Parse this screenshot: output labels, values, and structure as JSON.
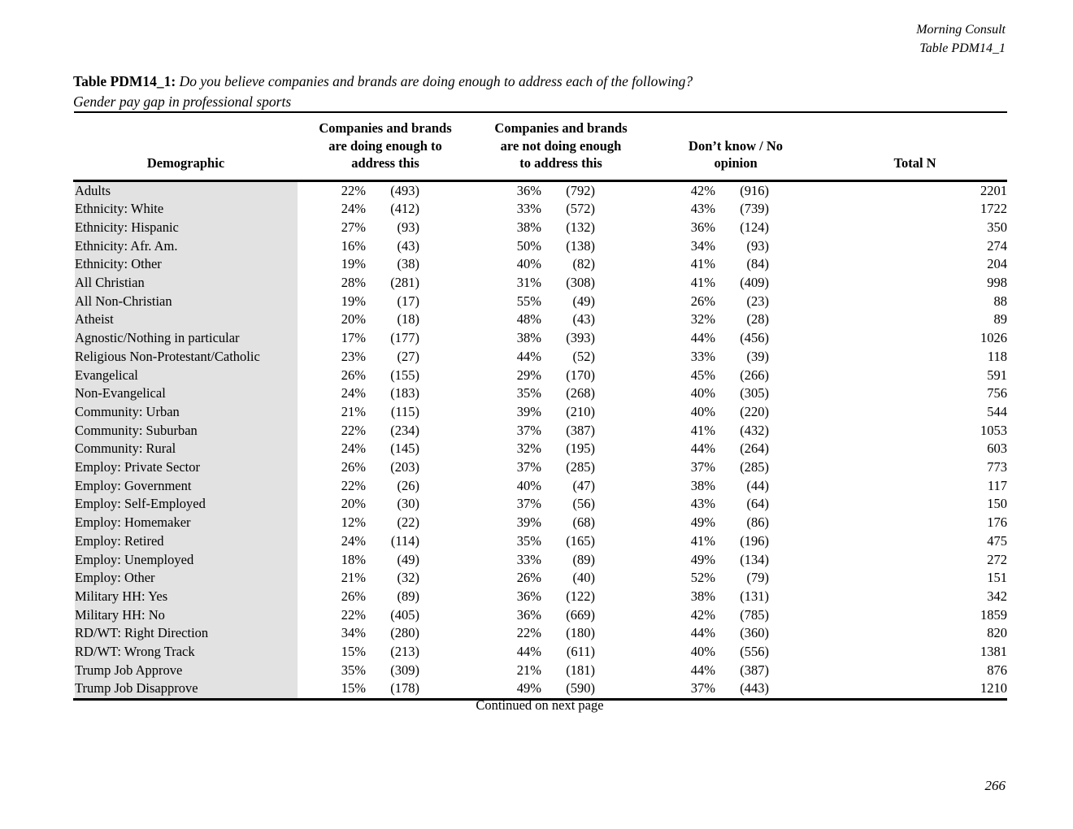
{
  "header": {
    "line1": "Morning Consult",
    "line2": "Table PDM14_1"
  },
  "title": {
    "label": "Table PDM14_1:",
    "question": "Do you believe companies and brands are doing enough to address each of the following?",
    "subtitle": "Gender pay gap in professional sports"
  },
  "table": {
    "headers": {
      "demographic": "Demographic",
      "col1": "Companies and brands\nare doing enough to\naddress this",
      "col2": "Companies and brands\nare not doing enough\nto address this",
      "col3": "Don’t know / No\nopinion",
      "total": "Total N"
    },
    "rows": [
      {
        "demographic": "Adults",
        "pct1": "22%",
        "n1": "(493)",
        "pct2": "36%",
        "n2": "(792)",
        "pct3": "42%",
        "n3": "(916)",
        "total": "2201"
      },
      {
        "demographic": "Ethnicity: White",
        "pct1": "24%",
        "n1": "(412)",
        "pct2": "33%",
        "n2": "(572)",
        "pct3": "43%",
        "n3": "(739)",
        "total": "1722"
      },
      {
        "demographic": "Ethnicity: Hispanic",
        "pct1": "27%",
        "n1": "(93)",
        "pct2": "38%",
        "n2": "(132)",
        "pct3": "36%",
        "n3": "(124)",
        "total": "350"
      },
      {
        "demographic": "Ethnicity: Afr. Am.",
        "pct1": "16%",
        "n1": "(43)",
        "pct2": "50%",
        "n2": "(138)",
        "pct3": "34%",
        "n3": "(93)",
        "total": "274"
      },
      {
        "demographic": "Ethnicity: Other",
        "pct1": "19%",
        "n1": "(38)",
        "pct2": "40%",
        "n2": "(82)",
        "pct3": "41%",
        "n3": "(84)",
        "total": "204"
      },
      {
        "demographic": "All Christian",
        "pct1": "28%",
        "n1": "(281)",
        "pct2": "31%",
        "n2": "(308)",
        "pct3": "41%",
        "n3": "(409)",
        "total": "998"
      },
      {
        "demographic": "All Non-Christian",
        "pct1": "19%",
        "n1": "(17)",
        "pct2": "55%",
        "n2": "(49)",
        "pct3": "26%",
        "n3": "(23)",
        "total": "88"
      },
      {
        "demographic": "Atheist",
        "pct1": "20%",
        "n1": "(18)",
        "pct2": "48%",
        "n2": "(43)",
        "pct3": "32%",
        "n3": "(28)",
        "total": "89"
      },
      {
        "demographic": "Agnostic/Nothing in particular",
        "pct1": "17%",
        "n1": "(177)",
        "pct2": "38%",
        "n2": "(393)",
        "pct3": "44%",
        "n3": "(456)",
        "total": "1026"
      },
      {
        "demographic": "Religious Non-Protestant/Catholic",
        "pct1": "23%",
        "n1": "(27)",
        "pct2": "44%",
        "n2": "(52)",
        "pct3": "33%",
        "n3": "(39)",
        "total": "118"
      },
      {
        "demographic": "Evangelical",
        "pct1": "26%",
        "n1": "(155)",
        "pct2": "29%",
        "n2": "(170)",
        "pct3": "45%",
        "n3": "(266)",
        "total": "591"
      },
      {
        "demographic": "Non-Evangelical",
        "pct1": "24%",
        "n1": "(183)",
        "pct2": "35%",
        "n2": "(268)",
        "pct3": "40%",
        "n3": "(305)",
        "total": "756"
      },
      {
        "demographic": "Community: Urban",
        "pct1": "21%",
        "n1": "(115)",
        "pct2": "39%",
        "n2": "(210)",
        "pct3": "40%",
        "n3": "(220)",
        "total": "544"
      },
      {
        "demographic": "Community: Suburban",
        "pct1": "22%",
        "n1": "(234)",
        "pct2": "37%",
        "n2": "(387)",
        "pct3": "41%",
        "n3": "(432)",
        "total": "1053"
      },
      {
        "demographic": "Community: Rural",
        "pct1": "24%",
        "n1": "(145)",
        "pct2": "32%",
        "n2": "(195)",
        "pct3": "44%",
        "n3": "(264)",
        "total": "603"
      },
      {
        "demographic": "Employ: Private Sector",
        "pct1": "26%",
        "n1": "(203)",
        "pct2": "37%",
        "n2": "(285)",
        "pct3": "37%",
        "n3": "(285)",
        "total": "773"
      },
      {
        "demographic": "Employ: Government",
        "pct1": "22%",
        "n1": "(26)",
        "pct2": "40%",
        "n2": "(47)",
        "pct3": "38%",
        "n3": "(44)",
        "total": "117"
      },
      {
        "demographic": "Employ: Self-Employed",
        "pct1": "20%",
        "n1": "(30)",
        "pct2": "37%",
        "n2": "(56)",
        "pct3": "43%",
        "n3": "(64)",
        "total": "150"
      },
      {
        "demographic": "Employ: Homemaker",
        "pct1": "12%",
        "n1": "(22)",
        "pct2": "39%",
        "n2": "(68)",
        "pct3": "49%",
        "n3": "(86)",
        "total": "176"
      },
      {
        "demographic": "Employ: Retired",
        "pct1": "24%",
        "n1": "(114)",
        "pct2": "35%",
        "n2": "(165)",
        "pct3": "41%",
        "n3": "(196)",
        "total": "475"
      },
      {
        "demographic": "Employ: Unemployed",
        "pct1": "18%",
        "n1": "(49)",
        "pct2": "33%",
        "n2": "(89)",
        "pct3": "49%",
        "n3": "(134)",
        "total": "272"
      },
      {
        "demographic": "Employ: Other",
        "pct1": "21%",
        "n1": "(32)",
        "pct2": "26%",
        "n2": "(40)",
        "pct3": "52%",
        "n3": "(79)",
        "total": "151"
      },
      {
        "demographic": "Military HH: Yes",
        "pct1": "26%",
        "n1": "(89)",
        "pct2": "36%",
        "n2": "(122)",
        "pct3": "38%",
        "n3": "(131)",
        "total": "342"
      },
      {
        "demographic": "Military HH: No",
        "pct1": "22%",
        "n1": "(405)",
        "pct2": "36%",
        "n2": "(669)",
        "pct3": "42%",
        "n3": "(785)",
        "total": "1859"
      },
      {
        "demographic": "RD/WT: Right Direction",
        "pct1": "34%",
        "n1": "(280)",
        "pct2": "22%",
        "n2": "(180)",
        "pct3": "44%",
        "n3": "(360)",
        "total": "820"
      },
      {
        "demographic": "RD/WT: Wrong Track",
        "pct1": "15%",
        "n1": "(213)",
        "pct2": "44%",
        "n2": "(611)",
        "pct3": "40%",
        "n3": "(556)",
        "total": "1381"
      },
      {
        "demographic": "Trump Job Approve",
        "pct1": "35%",
        "n1": "(309)",
        "pct2": "21%",
        "n2": "(181)",
        "pct3": "44%",
        "n3": "(387)",
        "total": "876"
      },
      {
        "demographic": "Trump Job Disapprove",
        "pct1": "15%",
        "n1": "(178)",
        "pct2": "49%",
        "n2": "(590)",
        "pct3": "37%",
        "n3": "(443)",
        "total": "1210"
      }
    ]
  },
  "footer": {
    "continued": "Continued on next page",
    "page_number": "266"
  }
}
